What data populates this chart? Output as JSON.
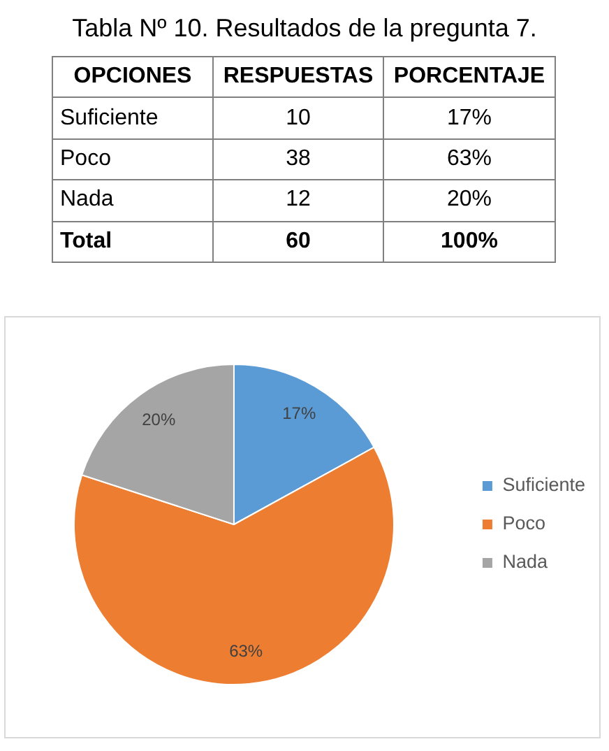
{
  "chart_data": [
    {
      "type": "other",
      "title": "Tabla Nº 10. Resultados de la pregunta 7.",
      "xlabel": "OPCIONES",
      "categories": [
        "Suficiente",
        "Poco",
        "Nada",
        "Total"
      ],
      "data_labels": true,
      "series": [
        {
          "name": "RESPUESTAS",
          "values": [
            10,
            38,
            12,
            60
          ]
        },
        {
          "name": "PORCENTAJE",
          "values": [
            17,
            63,
            20,
            100
          ],
          "value_labels": [
            "17%",
            "63%",
            "20%",
            "100%"
          ]
        }
      ]
    },
    {
      "type": "pie",
      "categories": [
        "Suficiente",
        "Poco",
        "Nada"
      ],
      "values": [
        17,
        63,
        20
      ],
      "value_labels": [
        "17%",
        "63%",
        "20%"
      ],
      "colors": [
        "#5b9bd5",
        "#ed7d31",
        "#a5a5a5"
      ],
      "legend": "right"
    }
  ]
}
